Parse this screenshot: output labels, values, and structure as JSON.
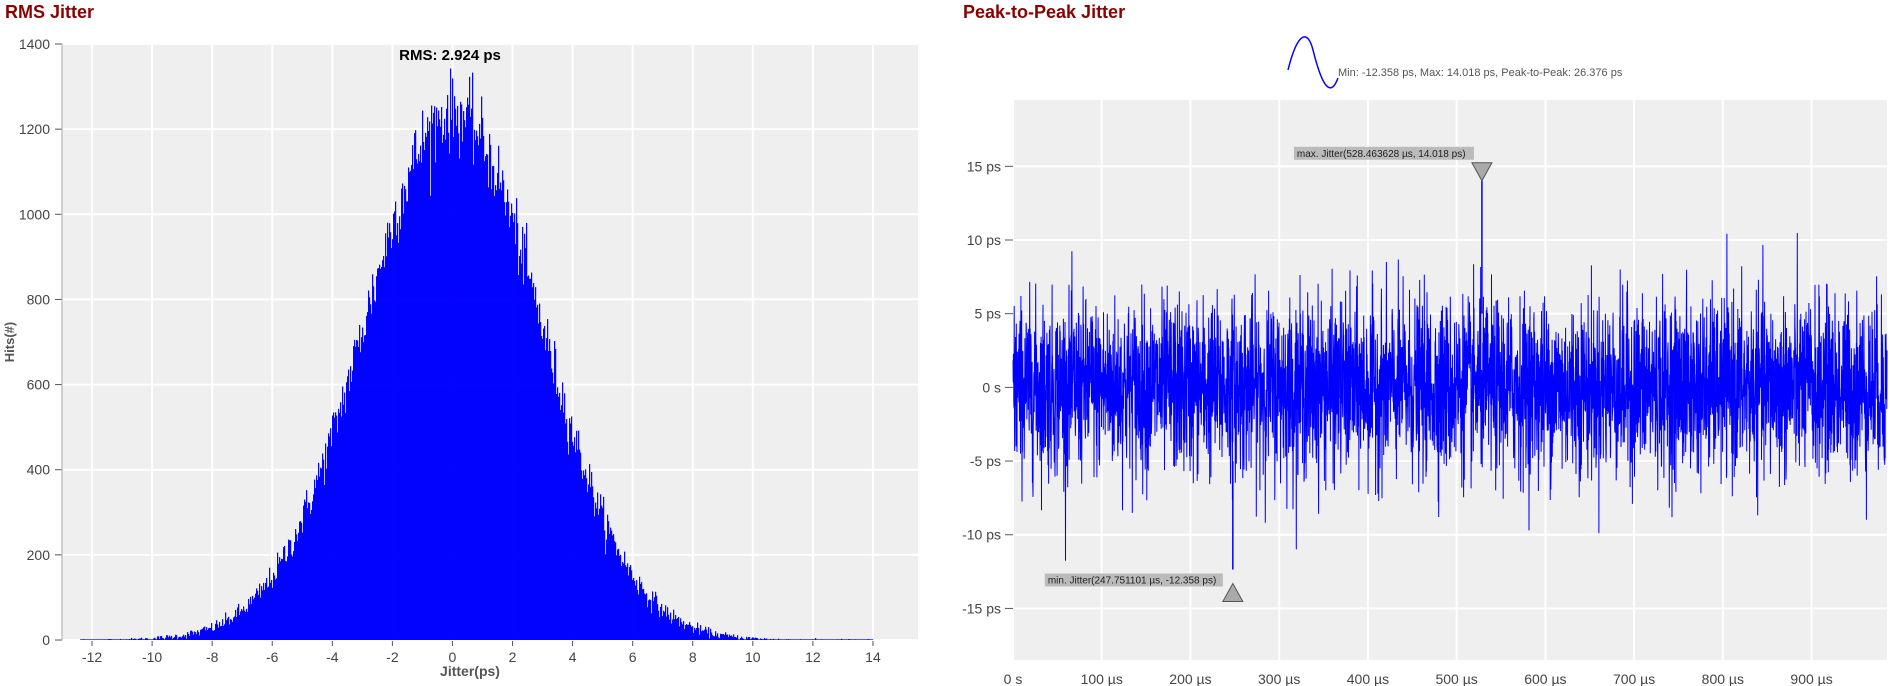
{
  "panels": {
    "left_title": "RMS Jitter",
    "right_title": "Peak-to-Peak Jitter"
  },
  "colors": {
    "title": "#8b0000",
    "series": "#0000ff",
    "plot_bg": "#efefef",
    "grid": "#ffffff"
  },
  "chart_data": [
    {
      "type": "bar",
      "title": "RMS Jitter",
      "annotation": "RMS: 2.924 ps",
      "xlabel": "Jitter(ps)",
      "ylabel": "Hits(#)",
      "xlim": [
        -13,
        15.5
      ],
      "ylim": [
        0,
        1400
      ],
      "xticks": [
        -12,
        -10,
        -8,
        -6,
        -4,
        -2,
        0,
        2,
        4,
        6,
        8,
        10,
        12,
        14
      ],
      "yticks": [
        0,
        200,
        400,
        600,
        800,
        1000,
        1200,
        1400
      ],
      "grid": true,
      "distribution": {
        "shape": "gaussian",
        "center": 0.0,
        "sigma": 2.924,
        "peak": 1240,
        "range": [
          -12.4,
          14.0
        ]
      }
    },
    {
      "type": "line",
      "title": "Peak-to-Peak Jitter",
      "legend": "Min: -12.358 ps, Max: 14.018 ps, Peak-to-Peak: 26.376 ps",
      "legend_position": "top",
      "xticks": [
        "0 s",
        "100 µs",
        "200 µs",
        "300 µs",
        "400 µs",
        "500 µs",
        "600 µs",
        "700 µs",
        "800 µs",
        "900 µs"
      ],
      "yticks": [
        "15 ps",
        "10 ps",
        "5 ps",
        "0 s",
        "-5 ps",
        "-10 ps",
        "-15 ps"
      ],
      "ytick_values": [
        15,
        10,
        5,
        0,
        -5,
        -10,
        -15
      ],
      "xlim": [
        0,
        985
      ],
      "ylim": [
        -18.5,
        19.5
      ],
      "grid": true,
      "max_marker": {
        "label": "max. Jitter(528.463628 µs, 14.018 ps)",
        "x": 528.463628,
        "y": 14.018
      },
      "min_marker": {
        "label": "min. Jitter(247.751101 µs, -12.358 ps)",
        "x": 247.751101,
        "y": -12.358
      },
      "series": {
        "min": -12.358,
        "max": 14.018,
        "rms": 2.924
      }
    }
  ]
}
